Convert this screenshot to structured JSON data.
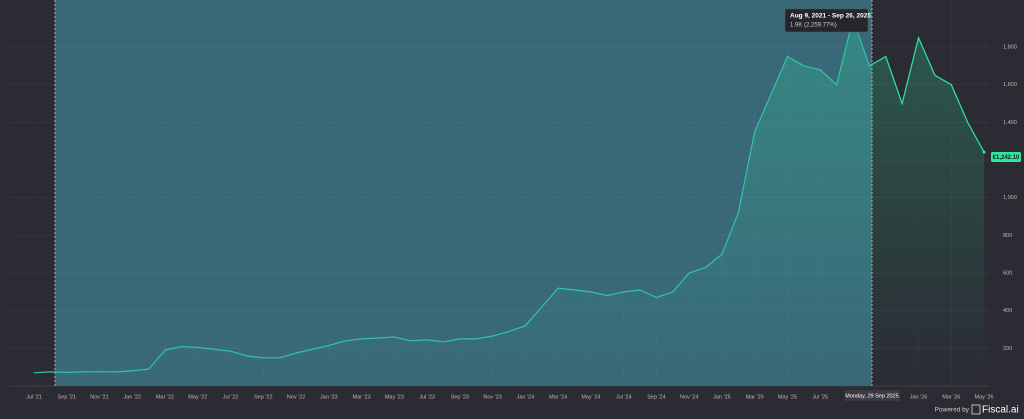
{
  "chart_data": {
    "type": "line",
    "x": [
      "2021-07",
      "2021-08",
      "2021-09",
      "2021-10",
      "2021-11",
      "2021-12",
      "2022-01",
      "2022-02",
      "2022-03",
      "2022-04",
      "2022-05",
      "2022-06",
      "2022-07",
      "2022-08",
      "2022-09",
      "2022-10",
      "2022-11",
      "2022-12",
      "2023-01",
      "2023-02",
      "2023-03",
      "2023-04",
      "2023-05",
      "2023-06",
      "2023-07",
      "2023-08",
      "2023-09",
      "2023-10",
      "2023-11",
      "2023-12",
      "2024-01",
      "2024-02",
      "2024-03",
      "2024-04",
      "2024-05",
      "2024-06",
      "2024-07",
      "2024-08",
      "2024-09",
      "2024-10",
      "2024-11",
      "2024-12",
      "2025-01",
      "2025-02",
      "2025-03",
      "2025-04",
      "2025-05",
      "2025-06",
      "2025-07",
      "2025-08",
      "2025-09",
      "2025-10",
      "2025-11",
      "2025-12",
      "2026-01",
      "2026-02",
      "2026-03",
      "2026-04",
      "2026-05"
    ],
    "series": [
      {
        "name": "Price",
        "color": "#2ee6a0",
        "values": [
          70,
          75,
          72,
          75,
          76,
          75,
          80,
          90,
          190,
          210,
          205,
          195,
          185,
          160,
          150,
          150,
          175,
          195,
          215,
          240,
          250,
          255,
          260,
          240,
          245,
          235,
          250,
          250,
          265,
          290,
          320,
          420,
          520,
          510,
          500,
          480,
          500,
          510,
          470,
          500,
          600,
          630,
          700,
          920,
          1350,
          1550,
          1750,
          1700,
          1680,
          1600,
          1950,
          1700,
          1750,
          1500,
          1850,
          1650,
          1600,
          1400,
          1242
        ]
      }
    ],
    "last_price_label": "€1,242.10",
    "ylim": [
      0,
      2050
    ],
    "yticks": [
      200,
      400,
      600,
      800,
      {
        "value": 1000,
        "label": "1,000"
      },
      {
        "value": 1200,
        "label": "1,200"
      },
      {
        "value": 1400,
        "label": "1,400"
      },
      {
        "value": 1600,
        "label": "1,600"
      },
      {
        "value": 1800,
        "label": "1,800"
      }
    ],
    "xticks": [
      {
        "value": "2021-07",
        "label": "Jul '21"
      },
      {
        "value": "2021-09",
        "label": "Sep '21"
      },
      {
        "value": "2021-11",
        "label": "Nov '21"
      },
      {
        "value": "2022-01",
        "label": "Jan '22"
      },
      {
        "value": "2022-03",
        "label": "Mar '22"
      },
      {
        "value": "2022-05",
        "label": "May '22"
      },
      {
        "value": "2022-07",
        "label": "Jul '22"
      },
      {
        "value": "2022-09",
        "label": "Sep '22"
      },
      {
        "value": "2022-11",
        "label": "Nov '22"
      },
      {
        "value": "2023-01",
        "label": "Jan '23"
      },
      {
        "value": "2023-03",
        "label": "Mar '23"
      },
      {
        "value": "2023-05",
        "label": "May '23"
      },
      {
        "value": "2023-07",
        "label": "Jul '23"
      },
      {
        "value": "2023-09",
        "label": "Sep '23"
      },
      {
        "value": "2023-11",
        "label": "Nov '23"
      },
      {
        "value": "2024-01",
        "label": "Jan '24"
      },
      {
        "value": "2024-03",
        "label": "Mar '24"
      },
      {
        "value": "2024-05",
        "label": "May '24"
      },
      {
        "value": "2024-07",
        "label": "Jul '24"
      },
      {
        "value": "2024-09",
        "label": "Sep '24"
      },
      {
        "value": "2024-11",
        "label": "Nov '24"
      },
      {
        "value": "2025-01",
        "label": "Jan '25"
      },
      {
        "value": "2025-03",
        "label": "Mar '25"
      },
      {
        "value": "2025-05",
        "label": "May '25"
      },
      {
        "value": "2025-07",
        "label": "Jul '25"
      },
      {
        "value": "2026-01",
        "label": "Jan '26"
      },
      {
        "value": "2026-03",
        "label": "Mar '26"
      },
      {
        "value": "2026-05",
        "label": "May '26"
      }
    ],
    "grid": true,
    "tooltip": {
      "range": "Aug 9, 2021 - Sep 26, 2025",
      "change": "1.9K (2,259.77%)"
    },
    "crosshair_label": "Monday, 29 Sep 2025"
  },
  "footer": {
    "powered_by": "Powered by",
    "brand": "Fiscal.ai"
  }
}
